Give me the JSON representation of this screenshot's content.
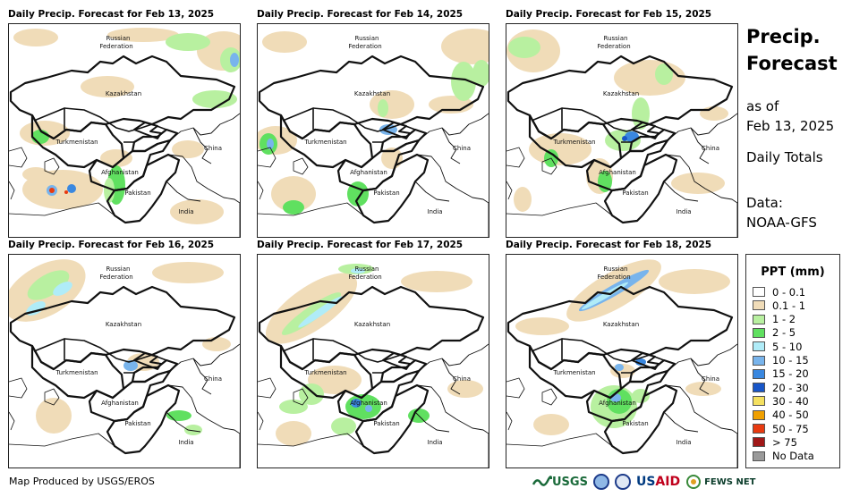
{
  "panels": [
    {
      "title": "Daily Precip. Forecast for Feb 13, 2025"
    },
    {
      "title": "Daily Precip. Forecast for Feb 14, 2025"
    },
    {
      "title": "Daily Precip. Forecast for Feb 15, 2025"
    },
    {
      "title": "Daily Precip. Forecast for Feb 16, 2025"
    },
    {
      "title": "Daily Precip. Forecast for Feb 17, 2025"
    },
    {
      "title": "Daily Precip. Forecast for Feb 18, 2025"
    }
  ],
  "map_labels": {
    "russia_line1": "Russian",
    "russia_line2": "Federation",
    "kazakhstan": "Kazakhstan",
    "turkmenistan": "Turkmenistan",
    "afghanistan": "Afghanistan",
    "pakistan": "Pakistan",
    "china": "China",
    "india": "India"
  },
  "side": {
    "title_line1": "Precip.",
    "title_line2": "Forecast",
    "asof_line1": "as of",
    "asof_line2": "Feb 13, 2025",
    "totals": "Daily Totals",
    "data_line1": "Data:",
    "data_line2": "NOAA-GFS"
  },
  "legend": {
    "title": "PPT (mm)",
    "items": [
      {
        "label": "0 - 0.1",
        "color": "#ffffff"
      },
      {
        "label": "0.1 - 1",
        "color": "#f0dcb8"
      },
      {
        "label": "1 - 2",
        "color": "#b8f0a0"
      },
      {
        "label": "2 - 5",
        "color": "#60e060"
      },
      {
        "label": "5 - 10",
        "color": "#b0ecf8"
      },
      {
        "label": "10 - 15",
        "color": "#78b4ec"
      },
      {
        "label": "15 - 20",
        "color": "#3a88e0"
      },
      {
        "label": "20 - 30",
        "color": "#1856c8"
      },
      {
        "label": "30 - 40",
        "color": "#f4e060"
      },
      {
        "label": "40 - 50",
        "color": "#f0a000"
      },
      {
        "label": "50 - 75",
        "color": "#e83a10"
      },
      {
        "label": "> 75",
        "color": "#a01818"
      },
      {
        "label": "No Data",
        "color": "#9a9a9a"
      }
    ]
  },
  "footer": {
    "credit": "Map Produced by USGS/EROS"
  },
  "logos": {
    "usgs": "USGS",
    "usaid_us": "US",
    "usaid_aid": "AID",
    "fews": "FEWS NET"
  }
}
